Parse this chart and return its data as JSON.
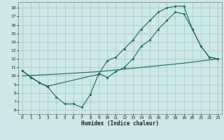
{
  "title": "",
  "xlabel": "Humidex (Indice chaleur)",
  "bg_color": "#cce8e8",
  "grid_color": "#aacccc",
  "line_color": "#1a6b5a",
  "xlim": [
    -0.5,
    23.5
  ],
  "ylim": [
    5.5,
    18.7
  ],
  "xticks": [
    0,
    1,
    2,
    3,
    4,
    5,
    6,
    7,
    8,
    9,
    10,
    11,
    12,
    13,
    14,
    15,
    16,
    17,
    18,
    19,
    20,
    21,
    22,
    23
  ],
  "yticks": [
    6,
    7,
    8,
    9,
    10,
    11,
    12,
    13,
    14,
    15,
    16,
    17,
    18
  ],
  "line1_x": [
    0,
    1,
    2,
    3,
    4,
    5,
    6,
    7,
    8,
    9,
    10,
    11,
    12,
    13,
    14,
    15,
    16,
    17,
    18,
    19,
    20,
    21,
    22,
    23
  ],
  "line1_y": [
    10.6,
    9.8,
    9.2,
    8.7,
    7.5,
    6.7,
    6.7,
    6.3,
    7.8,
    10.3,
    9.8,
    10.5,
    11.0,
    12.0,
    13.5,
    14.2,
    15.5,
    16.5,
    17.5,
    17.3,
    15.5,
    13.5,
    12.2,
    12.0
  ],
  "line2_x": [
    0,
    2,
    3,
    9,
    10,
    11,
    12,
    13,
    14,
    15,
    16,
    17,
    18,
    19,
    20,
    21,
    22,
    23
  ],
  "line2_y": [
    10.6,
    9.2,
    8.8,
    10.2,
    11.8,
    12.2,
    13.2,
    14.2,
    15.5,
    16.5,
    17.5,
    18.0,
    18.2,
    18.2,
    15.5,
    13.5,
    12.2,
    12.0
  ],
  "line3_x": [
    0,
    4,
    9,
    14,
    19,
    23
  ],
  "line3_y": [
    10.0,
    10.2,
    10.5,
    11.0,
    11.5,
    12.0
  ]
}
